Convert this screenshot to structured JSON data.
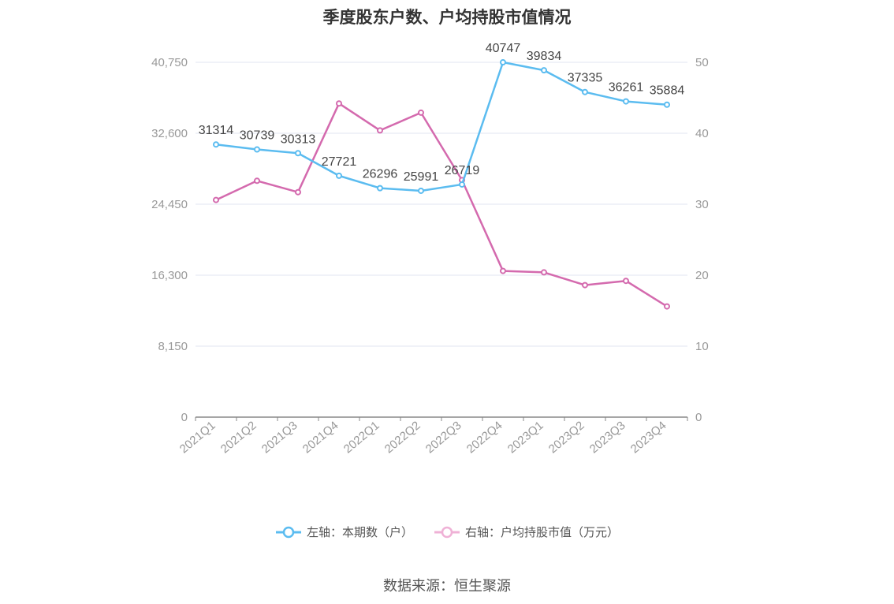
{
  "chart_data": {
    "type": "line",
    "title": "季度股东户数、户均持股市值情况",
    "categories": [
      "2021Q1",
      "2021Q2",
      "2021Q3",
      "2021Q4",
      "2022Q1",
      "2022Q2",
      "2022Q3",
      "2022Q4",
      "2023Q1",
      "2023Q2",
      "2023Q3",
      "2023Q4"
    ],
    "left_axis": {
      "ticks": [
        "0",
        "8,150",
        "16,300",
        "24,450",
        "32,600",
        "40,750"
      ],
      "min": 0,
      "max": 40750
    },
    "right_axis": {
      "ticks": [
        "0",
        "10",
        "20",
        "30",
        "40",
        "50"
      ],
      "min": 0,
      "max": 50
    },
    "series": [
      {
        "name": "左轴：本期数（户）",
        "axis": "left",
        "color": "#5bbcf0",
        "values": [
          31314,
          30739,
          30313,
          27721,
          26296,
          25991,
          26719,
          40747,
          39834,
          37335,
          36261,
          35884
        ],
        "labels": [
          "31314",
          "30739",
          "30313",
          "27721",
          "26296",
          "25991",
          "26719",
          "40747",
          "39834",
          "37335",
          "36261",
          "35884"
        ]
      },
      {
        "name": "右轴：户均持股市值（万元）",
        "axis": "right",
        "color": "#d46aae",
        "values": [
          30.6,
          33.3,
          31.7,
          44.2,
          40.4,
          42.9,
          33.4,
          20.6,
          20.4,
          18.6,
          19.2,
          15.6
        ]
      }
    ],
    "legend_position": "bottom",
    "grid": true
  },
  "source": "数据来源：恒生聚源"
}
